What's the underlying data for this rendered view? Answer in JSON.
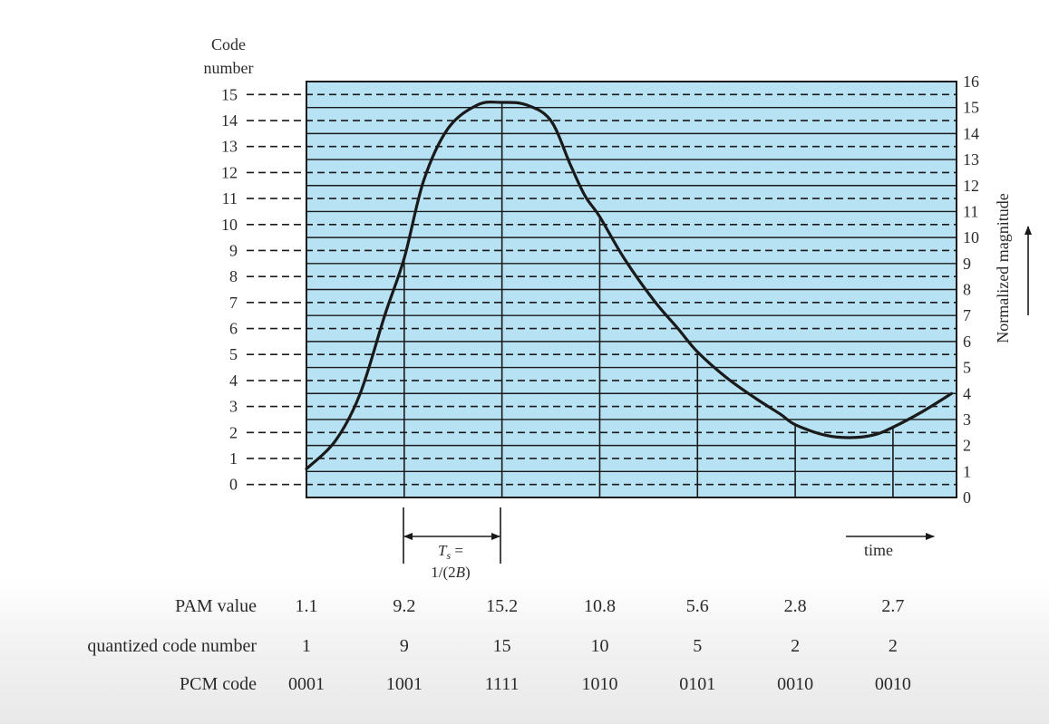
{
  "diagram": {
    "left_axis_title": [
      "Code",
      "number"
    ],
    "right_axis_title": "Normalized magnitude",
    "time_label": "time",
    "ts_label_line1": "T",
    "ts_label_sub": "s",
    "ts_label_eq": " =",
    "ts_label_line2_a": "1/(2",
    "ts_label_line2_b": "B",
    "ts_label_line2_c": ")",
    "left_ticks": [
      "0",
      "1",
      "2",
      "3",
      "4",
      "5",
      "6",
      "7",
      "8",
      "9",
      "10",
      "11",
      "12",
      "13",
      "14",
      "15"
    ],
    "right_ticks": [
      "0",
      "1",
      "2",
      "3",
      "4",
      "5",
      "6",
      "7",
      "8",
      "9",
      "10",
      "11",
      "12",
      "13",
      "14",
      "15",
      "16"
    ],
    "colors": {
      "plot_bg": "#b7e2f4",
      "line": "#1a1a1a"
    }
  },
  "chart_data": {
    "type": "line",
    "x_range": [
      0,
      6.65
    ],
    "y_range": [
      0,
      16
    ],
    "sample_times": [
      0,
      1,
      2,
      3,
      4,
      5,
      6
    ],
    "curve": [
      {
        "x": 0.0,
        "y": 1.1
      },
      {
        "x": 0.3,
        "y": 2.2
      },
      {
        "x": 0.55,
        "y": 4.0
      },
      {
        "x": 0.8,
        "y": 7.0
      },
      {
        "x": 1.0,
        "y": 9.2
      },
      {
        "x": 1.2,
        "y": 12.2
      },
      {
        "x": 1.45,
        "y": 14.2
      },
      {
        "x": 1.75,
        "y": 15.1
      },
      {
        "x": 2.0,
        "y": 15.2
      },
      {
        "x": 2.25,
        "y": 15.1
      },
      {
        "x": 2.5,
        "y": 14.5
      },
      {
        "x": 2.7,
        "y": 12.8
      },
      {
        "x": 2.85,
        "y": 11.6
      },
      {
        "x": 3.0,
        "y": 10.8
      },
      {
        "x": 3.25,
        "y": 9.2
      },
      {
        "x": 3.55,
        "y": 7.6
      },
      {
        "x": 3.8,
        "y": 6.5
      },
      {
        "x": 4.0,
        "y": 5.6
      },
      {
        "x": 4.3,
        "y": 4.6
      },
      {
        "x": 4.6,
        "y": 3.8
      },
      {
        "x": 4.85,
        "y": 3.2
      },
      {
        "x": 5.0,
        "y": 2.8
      },
      {
        "x": 5.3,
        "y": 2.4
      },
      {
        "x": 5.55,
        "y": 2.3
      },
      {
        "x": 5.8,
        "y": 2.4
      },
      {
        "x": 6.0,
        "y": 2.7
      },
      {
        "x": 6.3,
        "y": 3.3
      },
      {
        "x": 6.6,
        "y": 4.0
      }
    ]
  },
  "table": {
    "rows": [
      {
        "label": "PAM value",
        "values": [
          "1.1",
          "9.2",
          "15.2",
          "10.8",
          "5.6",
          "2.8",
          "2.7"
        ]
      },
      {
        "label": "quantized code number",
        "values": [
          "1",
          "9",
          "15",
          "10",
          "5",
          "2",
          "2"
        ]
      },
      {
        "label": "PCM code",
        "values": [
          "0001",
          "1001",
          "1111",
          "1010",
          "0101",
          "0010",
          "0010"
        ]
      }
    ]
  }
}
